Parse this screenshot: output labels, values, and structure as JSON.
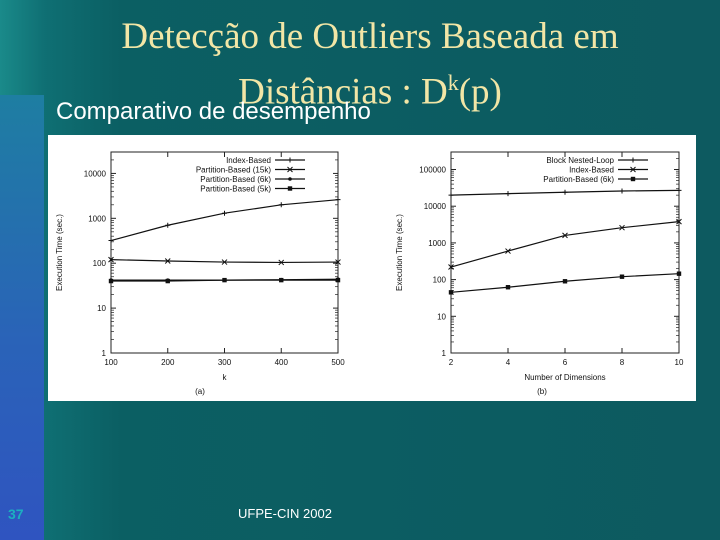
{
  "slide": {
    "title_main": "Detecção de Outliers Baseada em",
    "title_line2_prefix": "Distâncias : D",
    "title_sup": "k",
    "title_line2_suffix": "(p)",
    "subtitle": "Comparativo de desempenho",
    "slide_number": "37",
    "footer": "UFPE-CIN 2002"
  },
  "chart_data": [
    {
      "type": "line",
      "panel_label": "(a)",
      "xlabel": "k",
      "ylabel": "Execution Time (sec.)",
      "log_y": true,
      "xlim": [
        100,
        500
      ],
      "ylim": [
        1,
        30000
      ],
      "x_ticks": [
        100,
        200,
        300,
        400,
        500
      ],
      "y_ticks": [
        1,
        10,
        100,
        1000,
        10000
      ],
      "legend_position": "top-right",
      "series": [
        {
          "name": "Index-Based",
          "marker": "plus",
          "x": [
            100,
            200,
            300,
            400,
            500
          ],
          "values": [
            320,
            700,
            1300,
            2000,
            2600
          ]
        },
        {
          "name": "Partition-Based (15k)",
          "marker": "cross",
          "x": [
            100,
            200,
            300,
            400,
            500
          ],
          "values": [
            120,
            112,
            106,
            104,
            106
          ]
        },
        {
          "name": "Partition-Based (6k)",
          "marker": "dot",
          "x": [
            100,
            200,
            300,
            400,
            500
          ],
          "values": [
            42,
            42,
            42,
            43,
            44
          ]
        },
        {
          "name": "Partition-Based (5k)",
          "marker": "square",
          "x": [
            100,
            200,
            300,
            400,
            500
          ],
          "values": [
            40,
            40,
            42,
            42,
            42
          ]
        }
      ]
    },
    {
      "type": "line",
      "panel_label": "(b)",
      "xlabel": "Number of Dimensions",
      "ylabel": "Execution Time (sec.)",
      "log_y": true,
      "xlim": [
        2,
        10
      ],
      "ylim": [
        1,
        300000
      ],
      "x_ticks": [
        2,
        4,
        6,
        8,
        10
      ],
      "y_ticks": [
        1,
        10,
        100,
        1000,
        10000,
        100000
      ],
      "legend_position": "top-right",
      "series": [
        {
          "name": "Block Nested-Loop",
          "marker": "plus",
          "x": [
            2,
            4,
            6,
            8,
            10
          ],
          "values": [
            20000,
            22000,
            24000,
            26000,
            27000
          ]
        },
        {
          "name": "Index-Based",
          "marker": "cross",
          "x": [
            2,
            4,
            6,
            8,
            10
          ],
          "values": [
            220,
            600,
            1600,
            2600,
            3800
          ]
        },
        {
          "name": "Partition-Based (6k)",
          "marker": "square",
          "x": [
            2,
            4,
            6,
            8,
            10
          ],
          "values": [
            45,
            62,
            90,
            120,
            145
          ]
        }
      ]
    }
  ]
}
